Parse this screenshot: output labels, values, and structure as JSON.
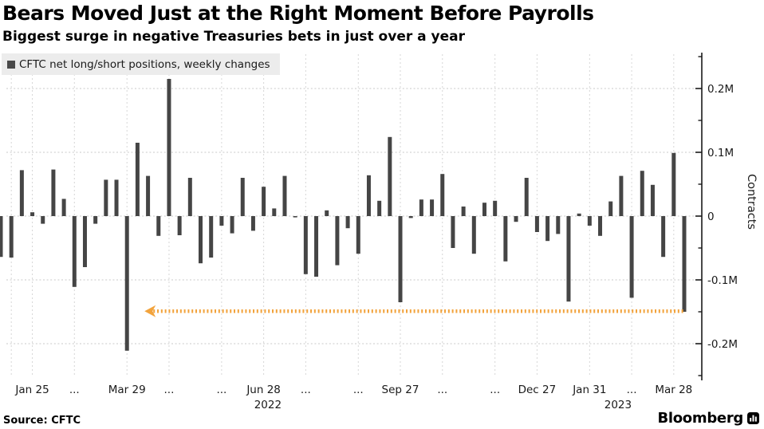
{
  "header": {
    "title": "Bears Moved Just at the Right Moment Before Payrolls",
    "subtitle": "Biggest surge in negative Treasuries bets in just over a year"
  },
  "legend": {
    "label": "CFTC net long/short positions, weekly changes",
    "marker_color": "#4a4a4a"
  },
  "footer": {
    "source_label": "Source: CFTC",
    "brand": "Bloomberg"
  },
  "colors": {
    "bar": "#454545",
    "accent_orange": "#f2a33c",
    "grid_h": "#c9c9c9",
    "grid_v": "#d6d6d6",
    "axis_line": "#1a1a1a",
    "legend_bg": "#ececec"
  },
  "chart_data": {
    "type": "bar",
    "title": "CFTC net long/short positions, weekly changes",
    "ylabel": "Contracts",
    "unit": "millions of contracts (M)",
    "grid": true,
    "ylim": [
      -0.249,
      0.254
    ],
    "y_ticks": [
      {
        "value": 0.2,
        "label": "0.2M"
      },
      {
        "value": 0.1,
        "label": "0.1M"
      },
      {
        "value": 0,
        "label": "0"
      },
      {
        "value": -0.1,
        "label": "-0.1M"
      },
      {
        "value": -0.2,
        "label": "-0.2M"
      }
    ],
    "y_minor_ticks": [
      0.25,
      0.15,
      0.05,
      -0.05,
      -0.15,
      -0.25
    ],
    "x_ticks": [
      {
        "position": 1,
        "label": ""
      },
      {
        "position": 3,
        "label": "Jan 25"
      },
      {
        "position": 7,
        "label": "..."
      },
      {
        "position": 12,
        "label": "Mar 29"
      },
      {
        "position": 16,
        "label": "..."
      },
      {
        "position": 21,
        "label": "..."
      },
      {
        "position": 25,
        "label": "Jun 28"
      },
      {
        "position": 29,
        "label": "..."
      },
      {
        "position": 34,
        "label": "..."
      },
      {
        "position": 38,
        "label": "Sep 27"
      },
      {
        "position": 42,
        "label": "..."
      },
      {
        "position": 47,
        "label": "..."
      },
      {
        "position": 51,
        "label": "Dec 27"
      },
      {
        "position": 56,
        "label": "Jan 31"
      },
      {
        "position": 60,
        "label": "..."
      },
      {
        "position": 64,
        "label": "Mar 28"
      }
    ],
    "year_labels": [
      {
        "position": 25.4,
        "label": "2022"
      },
      {
        "position": 58.7,
        "label": "2023"
      }
    ],
    "values": [
      -0.064,
      -0.065,
      0.072,
      0.006,
      -0.012,
      0.073,
      0.027,
      -0.111,
      -0.08,
      -0.012,
      0.057,
      0.057,
      -0.211,
      0.115,
      0.063,
      -0.031,
      0.215,
      -0.03,
      0.06,
      -0.074,
      -0.065,
      -0.015,
      -0.027,
      0.06,
      -0.023,
      0.046,
      0.012,
      0.063,
      -0.002,
      -0.091,
      -0.095,
      0.009,
      -0.077,
      -0.019,
      -0.059,
      0.064,
      0.024,
      0.124,
      -0.135,
      -0.003,
      0.026,
      0.026,
      0.066,
      -0.05,
      0.015,
      -0.059,
      0.021,
      0.024,
      -0.071,
      -0.009,
      0.06,
      -0.025,
      -0.039,
      -0.028,
      -0.134,
      0.004,
      -0.015,
      -0.031,
      0.023,
      0.063,
      -0.128,
      0.071,
      0.049,
      -0.064,
      0.099,
      -0.15
    ],
    "annotation_arrow": {
      "value": -0.149,
      "from_week": 14.2,
      "to_week": 65,
      "arrowhead": "left"
    }
  }
}
